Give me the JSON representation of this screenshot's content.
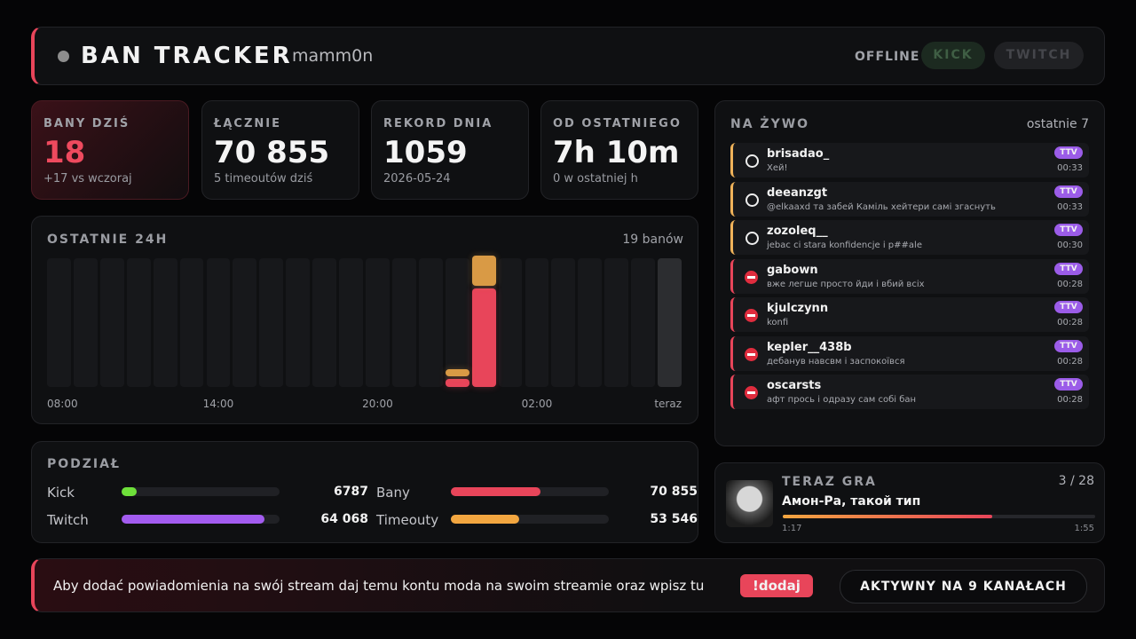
{
  "header": {
    "title": "BAN TRACKER",
    "channel": "mamm0n",
    "status": "OFFLINE",
    "buttons": [
      "KICK",
      "TWITCH"
    ]
  },
  "stats": [
    {
      "label": "BANY DZIŚ",
      "value": "18",
      "sub": "+17 vs wczoraj"
    },
    {
      "label": "ŁĄCZNIE",
      "value": "70 855",
      "sub": "5 timeoutów dziś"
    },
    {
      "label": "REKORD DNIA",
      "value": "1059",
      "sub": "2026-05-24"
    },
    {
      "label": "OD OSTATNIEGO",
      "value": "7h 10m",
      "sub": "0 w ostatniej h"
    }
  ],
  "chart_data": {
    "type": "bar",
    "stacked": true,
    "title": "OSTATNIE 24H",
    "subtitle": "19 banów",
    "categories": [
      "08:00",
      null,
      null,
      null,
      null,
      null,
      "14:00",
      null,
      null,
      null,
      null,
      null,
      "20:00",
      null,
      null,
      null,
      null,
      null,
      "02:00",
      null,
      null,
      null,
      null,
      "teraz"
    ],
    "series": [
      {
        "color": "#e8455a",
        "values": [
          0,
          0,
          0,
          0,
          0,
          0,
          0,
          0,
          0,
          0,
          0,
          0,
          0,
          0,
          0,
          1,
          13,
          0,
          0,
          0,
          0,
          0,
          0,
          0
        ]
      },
      {
        "color": "#d99a45",
        "values": [
          0,
          0,
          0,
          0,
          0,
          0,
          0,
          0,
          0,
          0,
          0,
          0,
          0,
          0,
          0,
          1,
          4,
          0,
          0,
          0,
          0,
          0,
          0,
          0
        ]
      }
    ],
    "ylim": [
      0,
      17
    ]
  },
  "split": {
    "title": "PODZIAŁ",
    "groups": [
      [
        {
          "label": "Kick",
          "color": "#6ee03a",
          "value": {
            "value": 6787,
            "label": "6787"
          }
        },
        {
          "label": "Twitch",
          "color": "#a35cf0",
          "value": {
            "value": 64068,
            "label": "64 068"
          }
        }
      ],
      [
        {
          "label": "Bany",
          "color": "#e8455a",
          "value": {
            "value": 70855,
            "label": "70 855"
          }
        },
        {
          "label": "Timeouty",
          "color": "#f2a640",
          "value": {
            "value": 53546,
            "label": "53 546"
          }
        }
      ]
    ]
  },
  "live": {
    "title": "NA ŻYWO",
    "subtitle": "ostatnie 7",
    "items": [
      {
        "kind": "timeout",
        "user": "brisadao_",
        "message": "Хей!",
        "badge": "TTV",
        "time": "00:33"
      },
      {
        "kind": "timeout",
        "user": "deeanzgt",
        "message": "@elkaaxd та забей Каміль хейтери самі згаснуть",
        "badge": "TTV",
        "time": "00:33"
      },
      {
        "kind": "timeout",
        "user": "zozoleq__",
        "message": "jebac ci stara konfidencje i p##ale",
        "badge": "TTV",
        "time": "00:30"
      },
      {
        "kind": "ban",
        "user": "gabown",
        "message": "вже легше просто йди і вбий всіх",
        "badge": "TTV",
        "time": "00:28"
      },
      {
        "kind": "ban",
        "user": "kjulczynn",
        "message": "konfi",
        "badge": "TTV",
        "time": "00:28"
      },
      {
        "kind": "ban",
        "user": "kepler__438b",
        "message": "дебанув навсвм і заспокоївся",
        "badge": "TTV",
        "time": "00:28"
      },
      {
        "kind": "ban",
        "user": "oscarsts",
        "message": "афт прось і одразу сам собі бан",
        "badge": "TTV",
        "time": "00:28"
      }
    ]
  },
  "now_playing": {
    "title": "TERAZ GRA",
    "position": "3 / 28",
    "track": "Амон-Ра, такой тип",
    "elapsed": {
      "value": 77,
      "label": "1:17"
    },
    "duration": {
      "value": 115,
      "label": "1:55"
    }
  },
  "footer": {
    "text": "Aby dodać powiadomienia na swój stream daj temu kontu moda na swoim streamie oraz wpisz tu",
    "command": "!dodaj",
    "active": "AKTYWNY NA 9 KANAŁACH"
  }
}
